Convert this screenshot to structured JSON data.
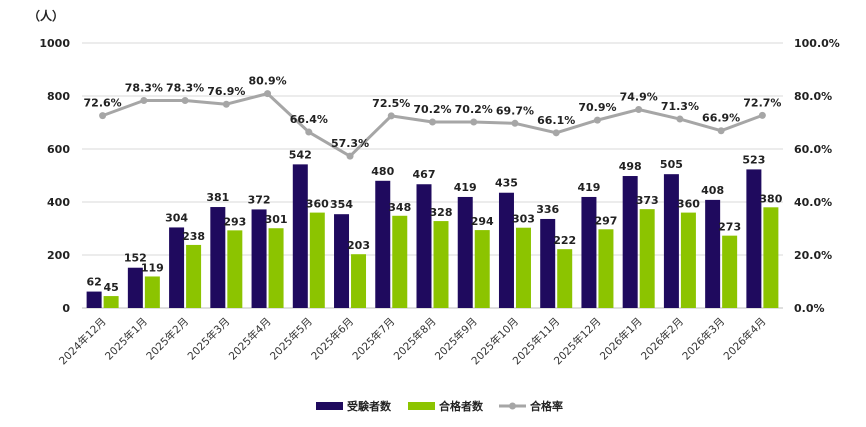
{
  "chart_data": {
    "type": "bar",
    "title": "",
    "y_unit_label": "（人）",
    "categories": [
      "2024年12月",
      "2025年1月",
      "2025年2月",
      "2025年3月",
      "2025年4月",
      "2025年5月",
      "2025年6月",
      "2025年7月",
      "2025年8月",
      "2025年9月",
      "2025年10月",
      "2025年11月",
      "2025年12月",
      "2026年1月",
      "2026年2月",
      "2026年3月",
      "2026年4月"
    ],
    "series": [
      {
        "name": "受験者数",
        "kind": "bar",
        "axis": "left",
        "color": "#1f0a5e",
        "values": [
          62,
          152,
          304,
          381,
          372,
          542,
          354,
          480,
          467,
          419,
          435,
          336,
          419,
          498,
          505,
          408,
          523
        ]
      },
      {
        "name": "合格者数",
        "kind": "bar",
        "axis": "left",
        "color": "#8cc400",
        "values": [
          45,
          119,
          238,
          293,
          301,
          360,
          203,
          348,
          328,
          294,
          303,
          222,
          297,
          373,
          360,
          273,
          380
        ]
      },
      {
        "name": "合格率",
        "kind": "line",
        "axis": "right",
        "color": "#a6a6a6",
        "values": [
          72.6,
          78.3,
          78.3,
          76.9,
          80.9,
          66.4,
          57.3,
          72.5,
          70.2,
          70.2,
          69.7,
          66.1,
          70.9,
          74.9,
          71.3,
          66.9,
          72.7
        ],
        "labels": [
          "72.6%",
          "78.3%",
          "78.3%",
          "76.9%",
          "80.9%",
          "66.4%",
          "57.3%",
          "72.5%",
          "70.2%",
          "70.2%",
          "69.7%",
          "66.1%",
          "70.9%",
          "74.9%",
          "71.3%",
          "66.9%",
          "72.7%"
        ]
      }
    ],
    "ylim": [
      0,
      1000
    ],
    "yticks": [
      "0",
      "200",
      "400",
      "600",
      "800",
      "1000"
    ],
    "y2lim": [
      0,
      100
    ],
    "y2ticks": [
      "0.0%",
      "20.0%",
      "40.0%",
      "60.0%",
      "80.0%",
      "100.0%"
    ],
    "grid": true,
    "legend_position": "bottom"
  }
}
